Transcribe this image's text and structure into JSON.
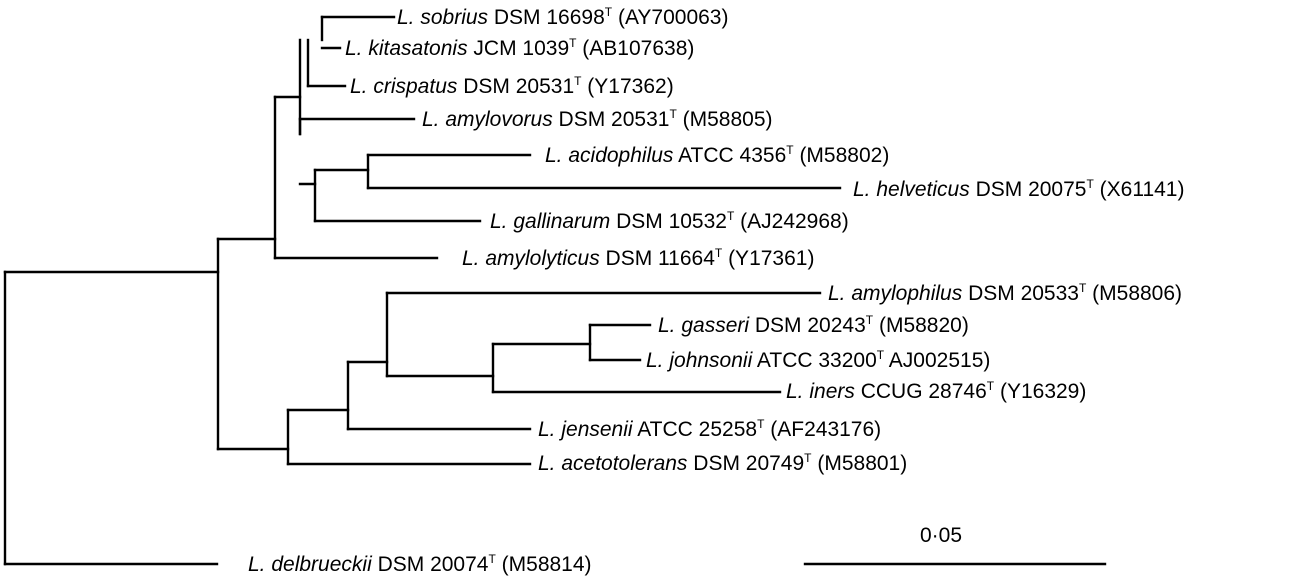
{
  "tree": {
    "taxa": [
      {
        "genus": "L.",
        "species": "sobrius",
        "strain": "DSM 16698",
        "type_mark": "T",
        "accession": "(AY700063)"
      },
      {
        "genus": "L.",
        "species": "kitasatonis",
        "strain": "JCM 1039",
        "type_mark": "T",
        "accession": "(AB107638)"
      },
      {
        "genus": "L.",
        "species": "crispatus",
        "strain": "DSM 20531",
        "type_mark": "T",
        "accession": "(Y17362)"
      },
      {
        "genus": "L.",
        "species": "amylovorus",
        "strain": "DSM 20531",
        "type_mark": "T",
        "accession": "(M58805)"
      },
      {
        "genus": "L.",
        "species": "acidophilus",
        "strain": "ATCC 4356",
        "type_mark": "T",
        "accession": "(M58802)"
      },
      {
        "genus": "L.",
        "species": "helveticus",
        "strain": "DSM 20075",
        "type_mark": "T",
        "accession": "(X61141)"
      },
      {
        "genus": "L.",
        "species": "gallinarum",
        "strain": "DSM 10532",
        "type_mark": "T",
        "accession": "(AJ242968)"
      },
      {
        "genus": "L.",
        "species": "amylolyticus",
        "strain": "DSM 11664",
        "type_mark": "T",
        "accession": "(Y17361)"
      },
      {
        "genus": "L.",
        "species": "amylophilus",
        "strain": "DSM 20533",
        "type_mark": "T",
        "accession": "(M58806)"
      },
      {
        "genus": "L.",
        "species": "gasseri",
        "strain": " DSM 20243",
        "type_mark": "T",
        "accession": "(M58820)"
      },
      {
        "genus": "L.",
        "species": "johnsonii",
        "strain": "ATCC 33200",
        "type_mark": "T",
        "accession": "AJ002515)"
      },
      {
        "genus": "L.",
        "species": "iners",
        "strain": "CCUG 28746",
        "type_mark": "T",
        "accession": "(Y16329)"
      },
      {
        "genus": "L.",
        "species": "jensenii",
        "strain": "ATCC 25258",
        "type_mark": "T",
        "accession": "(AF243176)"
      },
      {
        "genus": "L.",
        "species": "acetotolerans",
        "strain": "DSM 20749",
        "type_mark": "T",
        "accession": "(M58801)"
      },
      {
        "genus": "L.",
        "species": "delbrueckii",
        "strain": "DSM 20074",
        "type_mark": "T",
        "accession": "(M58814)"
      }
    ],
    "scale_bar": {
      "label": "0·05",
      "value": 0.05
    },
    "line_color": "#000000"
  }
}
